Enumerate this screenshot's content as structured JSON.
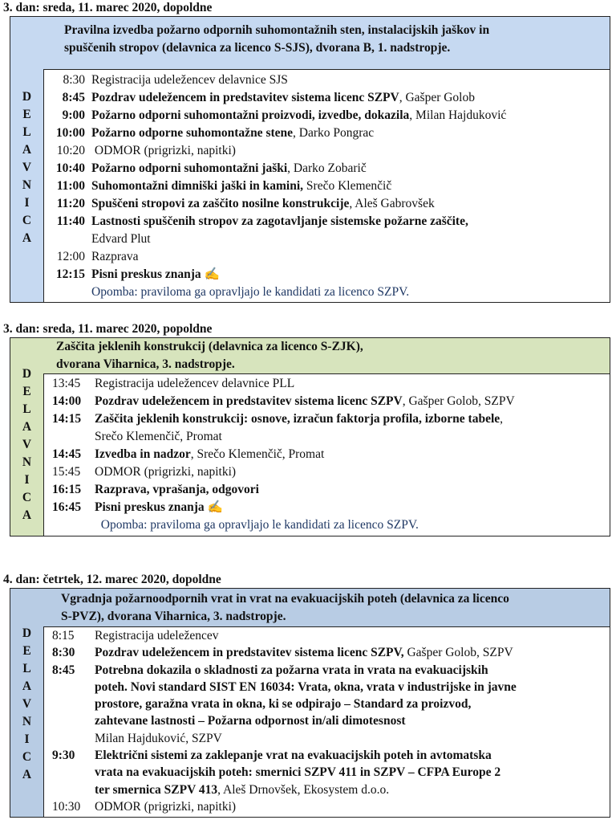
{
  "colors": {
    "blue_header": "#c6d9f1",
    "green_header": "#d7e4bd",
    "blue_header_2": "#b8cce4",
    "note": "#1f3864"
  },
  "sections": [
    {
      "day": "3. dan: sreda, 11. marec 2020, dopoldne",
      "side_label": [
        "D",
        "E",
        "L",
        "A",
        "V",
        "N",
        "I",
        "C",
        "A"
      ],
      "header_lines": [
        "Pravilna izvedba požarno odpornih suhomontažnih sten, instalacijskih jaškov in",
        "spuščenih stropov (delavnica za licenco S-SJS), dvorana B, 1. nadstropje."
      ],
      "rows": [
        {
          "time": "8:30",
          "tb": false,
          "segs": [
            {
              "t": "Registracija udeležencev delavnice SJS",
              "b": false
            }
          ]
        },
        {
          "time": "8:45",
          "tb": true,
          "segs": [
            {
              "t": "Pozdrav udeležencem in predstavitev sistema licenc SZPV",
              "b": true
            },
            {
              "t": ", Gašper Golob",
              "b": false
            }
          ]
        },
        {
          "time": "9:00",
          "tb": true,
          "segs": [
            {
              "t": "Požarno odporni suhomontažni proizvodi, izvedbe, dokazila",
              "b": true
            },
            {
              "t": ", Milan Hajduković",
              "b": false
            }
          ]
        },
        {
          "time": "10:00",
          "tb": true,
          "segs": [
            {
              "t": "Požarno odporne suhomontažne stene",
              "b": true
            },
            {
              "t": ", Darko Pongrac",
              "b": false
            }
          ]
        },
        {
          "time": "10:20",
          "tb": false,
          "segs": [
            {
              "t": " ODMOR (prigrizki, napitki)",
              "b": false
            }
          ]
        },
        {
          "time": "10:40",
          "tb": true,
          "segs": [
            {
              "t": "Požarno odporni suhomontažni jaški",
              "b": true
            },
            {
              "t": ", Darko Zobarič",
              "b": false
            }
          ]
        },
        {
          "time": "11:00",
          "tb": true,
          "segs": [
            {
              "t": "Suhomontažni dimniški jaški in kamini,",
              "b": true
            },
            {
              "t": " Srečo Klemenčič",
              "b": false
            }
          ]
        },
        {
          "time": "11:20",
          "tb": true,
          "segs": [
            {
              "t": "Spuščeni stropovi za zaščito nosilne konstrukcije",
              "b": true
            },
            {
              "t": ", Aleš Gabrovšek",
              "b": false
            }
          ]
        },
        {
          "time": "11:40",
          "tb": true,
          "segs": [
            {
              "t": "Lastnosti spuščenih stropov za zagotavljanje sistemske požarne zaščite,",
              "b": true
            }
          ]
        },
        {
          "time": "",
          "tb": false,
          "segs": [
            {
              "t": "Edvard Plut",
              "b": false
            }
          ]
        },
        {
          "time": "12:00",
          "tb": false,
          "segs": [
            {
              "t": "Razprava",
              "b": false
            }
          ]
        },
        {
          "time": "12:15",
          "tb": true,
          "segs": [
            {
              "t": "Pisni preskus znanja",
              "b": true
            },
            {
              "t": " ✍",
              "b": false
            }
          ]
        },
        {
          "time": "",
          "tb": false,
          "note": true,
          "segs": [
            {
              "t": "Opomba: praviloma ga opravljajo le kandidati za licenco SZPV.",
              "b": false
            }
          ]
        }
      ]
    },
    {
      "day": "3. dan: sreda, 11. marec 2020, popoldne",
      "side_label": [
        "D",
        "E",
        "L",
        "A",
        "V",
        "N",
        "I",
        "C",
        "A"
      ],
      "header_lines": [
        "Zaščita jeklenih konstrukcij (delavnica za licenco S-ZJK),",
        "dvorana Viharnica, 3. nadstropje."
      ],
      "rows": [
        {
          "time": "13:45",
          "tb": false,
          "segs": [
            {
              "t": "Registracija udeležencev delavnice PLL",
              "b": false
            }
          ]
        },
        {
          "time": "14:00",
          "tb": true,
          "segs": [
            {
              "t": "Pozdrav udeležencem in predstavitev sistema licenc SZPV",
              "b": true
            },
            {
              "t": ", Gašper Golob, SZPV",
              "b": false
            }
          ]
        },
        {
          "time": "14:15",
          "tb": true,
          "segs": [
            {
              "t": "Zaščita jeklenih konstrukcij: osnove, izračun faktorja profila, izborne tabele",
              "b": true
            },
            {
              "t": ",",
              "b": false
            }
          ]
        },
        {
          "time": "",
          "tb": false,
          "segs": [
            {
              "t": "Srečo Klemenčič, Promat",
              "b": false
            }
          ]
        },
        {
          "time": "14:45",
          "tb": true,
          "segs": [
            {
              "t": "Izvedba in nadzor",
              "b": true
            },
            {
              "t": ", Srečo Klemenčič, Promat",
              "b": false
            }
          ]
        },
        {
          "time": "15:45",
          "tb": false,
          "segs": [
            {
              "t": "ODMOR (prigrizki, napitki)",
              "b": false
            }
          ]
        },
        {
          "time": "16:15",
          "tb": true,
          "segs": [
            {
              "t": "Razprava, vprašanja, odgovori",
              "b": true
            }
          ]
        },
        {
          "time": "16:45",
          "tb": true,
          "segs": [
            {
              "t": "Pisni preskus znanja",
              "b": true
            },
            {
              "t": " ✍",
              "b": false
            }
          ]
        },
        {
          "time": "",
          "tb": false,
          "note": true,
          "segs": [
            {
              "t": "  Opomba: praviloma ga opravljajo le kandidati za licenco SZPV.",
              "b": false
            }
          ]
        }
      ]
    },
    {
      "day": "4. dan: četrtek, 12. marec 2020, dopoldne",
      "side_label": [
        "D",
        "E",
        "L",
        "A",
        "V",
        "N",
        "I",
        "C",
        "A"
      ],
      "header_lines": [
        "Vgradnja požarnoodpornih vrat in vrat na evakuacijskih poteh (delavnica za licenco",
        "S-PVZ), dvorana Viharnica, 3. nadstropje."
      ],
      "rows": [
        {
          "time": "8:15",
          "tb": false,
          "segs": [
            {
              "t": "Registracija udeležencev",
              "b": false
            }
          ]
        },
        {
          "time": "8:30",
          "tb": true,
          "segs": [
            {
              "t": "Pozdrav udeležencem in predstavitev sistema licenc SZPV,",
              "b": true
            },
            {
              "t": " Gašper Golob, SZPV",
              "b": false
            }
          ]
        },
        {
          "time": "8:45",
          "tb": true,
          "segs": [
            {
              "t": "Potrebna dokazila o skladnosti za požarna vrata in vrata na evakuacijskih",
              "b": true
            }
          ]
        },
        {
          "time": "",
          "tb": false,
          "segs": [
            {
              "t": "poteh. Novi standard SIST EN 16034: Vrata, okna, vrata v industrijske in javne",
              "b": true
            }
          ]
        },
        {
          "time": "",
          "tb": false,
          "segs": [
            {
              "t": "prostore, garažna vrata in okna, ki se odpirajo – Standard za proizvod,",
              "b": true
            }
          ]
        },
        {
          "time": "",
          "tb": false,
          "segs": [
            {
              "t": "zahtevane lastnosti – Požarna odpornost in/ali dimotesnost",
              "b": true
            }
          ]
        },
        {
          "time": "",
          "tb": false,
          "segs": [
            {
              "t": "Milan Hajduković, SZPV",
              "b": false
            }
          ]
        },
        {
          "time": "9:30",
          "tb": true,
          "segs": [
            {
              "t": "Električni sistemi za zaklepanje vrat na evakuacijskih poteh in avtomatska",
              "b": true
            }
          ]
        },
        {
          "time": "",
          "tb": false,
          "segs": [
            {
              "t": "vrata na evakuacijskih poteh: smernici SZPV 411 in SZPV – CFPA Europe 2",
              "b": true
            }
          ]
        },
        {
          "time": "",
          "tb": false,
          "segs": [
            {
              "t": "ter smernica SZPV 413",
              "b": true
            },
            {
              "t": ", Aleš Drnovšek, Ekosystem d.o.o.",
              "b": false
            }
          ]
        },
        {
          "time": "10:30",
          "tb": false,
          "segs": [
            {
              "t": "ODMOR (prigrizki, napitki)",
              "b": false
            }
          ]
        }
      ]
    }
  ]
}
